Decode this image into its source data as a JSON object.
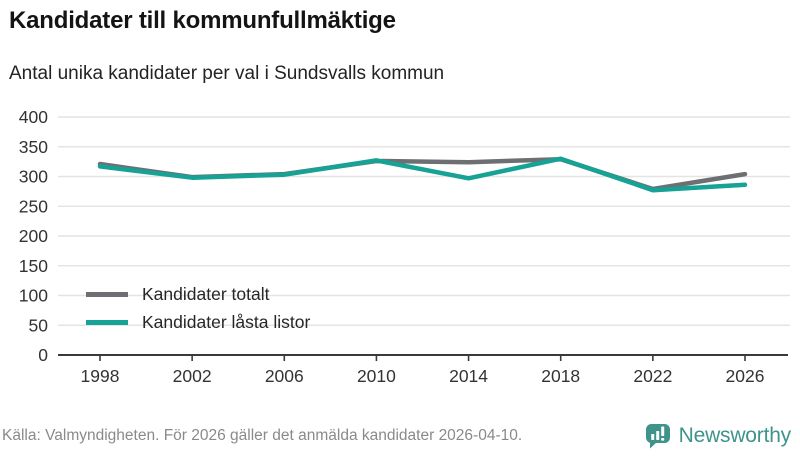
{
  "header": {
    "title": "Kandidater till kommunfullmäktige",
    "subtitle": "Antal unika kandidater per val i Sundsvalls kommun"
  },
  "chart_data": {
    "type": "line",
    "x": [
      1998,
      2002,
      2006,
      2010,
      2014,
      2018,
      2022,
      2026
    ],
    "series": [
      {
        "name": "Kandidater totalt",
        "color": "#6e6f72",
        "values": [
          321,
          299,
          304,
          326,
          324,
          329,
          279,
          304
        ]
      },
      {
        "name": "Kandidater låsta listor",
        "color": "#16a294",
        "values": [
          317,
          298,
          303,
          327,
          297,
          330,
          277,
          286
        ]
      }
    ],
    "title": "Kandidater till kommunfullmäktige",
    "xlabel": "",
    "ylabel": "",
    "ylim": [
      0,
      400
    ],
    "yticks": [
      0,
      50,
      100,
      150,
      200,
      250,
      300,
      350,
      400
    ],
    "grid": "horizontal",
    "legend_position": "inside-bottom-left",
    "gridline_color": "#e4e4e4",
    "axis_color": "#3a3a3a",
    "tick_label_color": "#333333"
  },
  "footer": {
    "source": "Källa: Valmyndigheten. För 2026 gäller det anmälda kandidater 2026-04-10.",
    "brand": "Newsworthy",
    "brand_color": "#3e948b"
  }
}
